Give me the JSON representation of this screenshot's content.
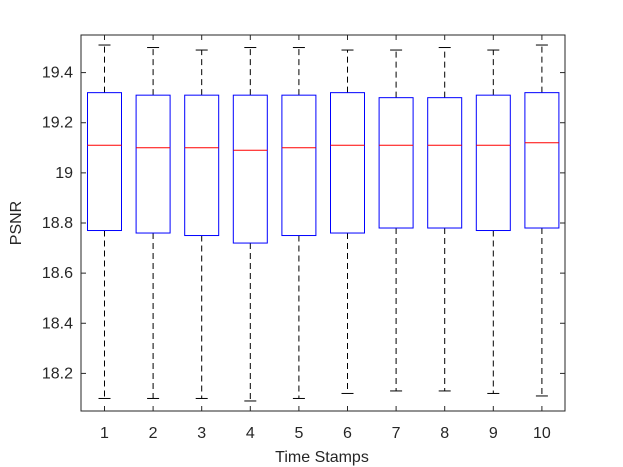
{
  "chart_data": {
    "type": "boxplot",
    "xlabel": "Time Stamps",
    "ylabel": "PSNR",
    "categories": [
      "1",
      "2",
      "3",
      "4",
      "5",
      "6",
      "7",
      "8",
      "9",
      "10"
    ],
    "ylim": [
      18.05,
      19.55
    ],
    "yticks": [
      "18.2",
      "18.4",
      "18.6",
      "18.8",
      "19",
      "19.2",
      "19.4"
    ],
    "boxes": [
      {
        "min": 18.1,
        "q1": 18.77,
        "median": 19.11,
        "q3": 19.32,
        "max": 19.51
      },
      {
        "min": 18.1,
        "q1": 18.76,
        "median": 19.1,
        "q3": 19.31,
        "max": 19.5
      },
      {
        "min": 18.1,
        "q1": 18.75,
        "median": 19.1,
        "q3": 19.31,
        "max": 19.49
      },
      {
        "min": 18.09,
        "q1": 18.72,
        "median": 19.09,
        "q3": 19.31,
        "max": 19.5
      },
      {
        "min": 18.1,
        "q1": 18.75,
        "median": 19.1,
        "q3": 19.31,
        "max": 19.5
      },
      {
        "min": 18.12,
        "q1": 18.76,
        "median": 19.11,
        "q3": 19.32,
        "max": 19.49
      },
      {
        "min": 18.13,
        "q1": 18.78,
        "median": 19.11,
        "q3": 19.3,
        "max": 19.49
      },
      {
        "min": 18.13,
        "q1": 18.78,
        "median": 19.11,
        "q3": 19.3,
        "max": 19.5
      },
      {
        "min": 18.12,
        "q1": 18.77,
        "median": 19.11,
        "q3": 19.31,
        "max": 19.49
      },
      {
        "min": 18.11,
        "q1": 18.78,
        "median": 19.12,
        "q3": 19.32,
        "max": 19.51
      }
    ],
    "colors": {
      "box": "#0000ff",
      "median": "#ff0000",
      "whisker": "#000000",
      "axes": "#262626"
    },
    "grid": false
  }
}
